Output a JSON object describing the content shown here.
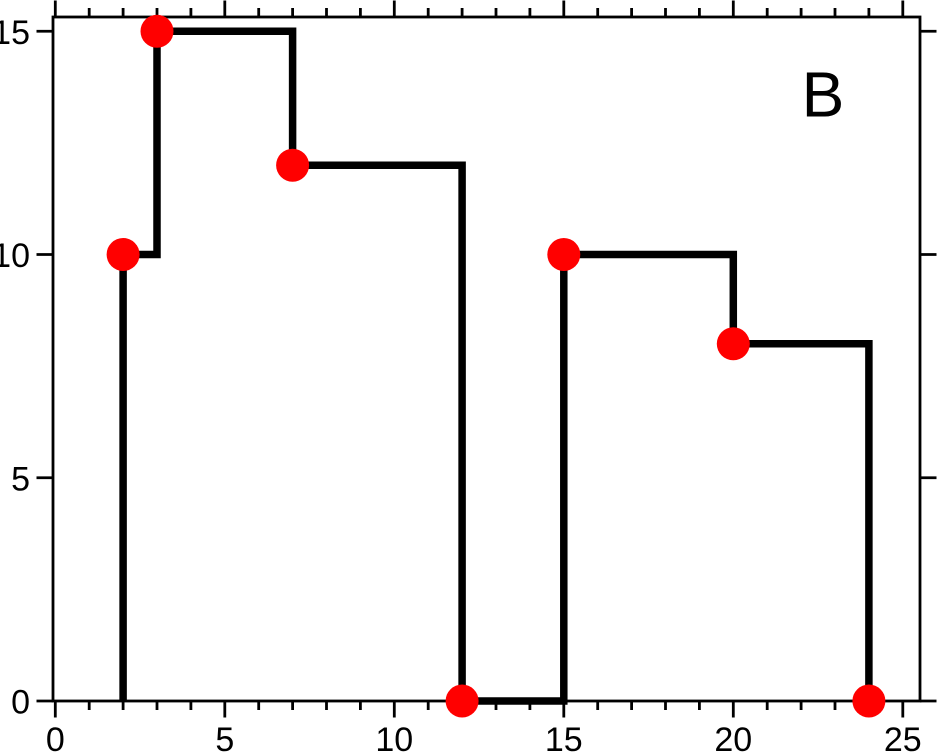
{
  "figure": {
    "background_color": "#ffffff",
    "panel_label": "B"
  },
  "chart_data": {
    "type": "line",
    "subtype": "step-post",
    "title": "",
    "xlabel": "",
    "ylabel": "",
    "x": [
      2,
      3,
      7,
      12,
      15,
      20,
      24
    ],
    "y": [
      10,
      15,
      12,
      0,
      10,
      8,
      0
    ],
    "step_path": [
      [
        2,
        0
      ],
      [
        2,
        10
      ],
      [
        3,
        10
      ],
      [
        3,
        15
      ],
      [
        7,
        15
      ],
      [
        7,
        12
      ],
      [
        12,
        12
      ],
      [
        12,
        0
      ],
      [
        15,
        0
      ],
      [
        15,
        10
      ],
      [
        20,
        10
      ],
      [
        20,
        8
      ],
      [
        24,
        8
      ],
      [
        24,
        0
      ]
    ],
    "xlim": [
      0,
      25.5
    ],
    "ylim": [
      0,
      15.3
    ],
    "x_major_ticks": [
      0,
      5,
      10,
      15,
      20,
      25
    ],
    "x_tick_labels": [
      "0",
      "5",
      "10",
      "15",
      "20",
      "25"
    ],
    "x_minor_tick_step": 1,
    "y_major_ticks": [
      0,
      5,
      10,
      15
    ],
    "y_tick_labels": [
      "0",
      "5",
      "10",
      "15"
    ],
    "tick_direction": "out",
    "mirrored_axes": true,
    "grid": false,
    "legend": null,
    "annotation": {
      "text": "B"
    },
    "line_color": "#000000",
    "marker_color": "#ff0000",
    "axis_color": "#000000"
  }
}
